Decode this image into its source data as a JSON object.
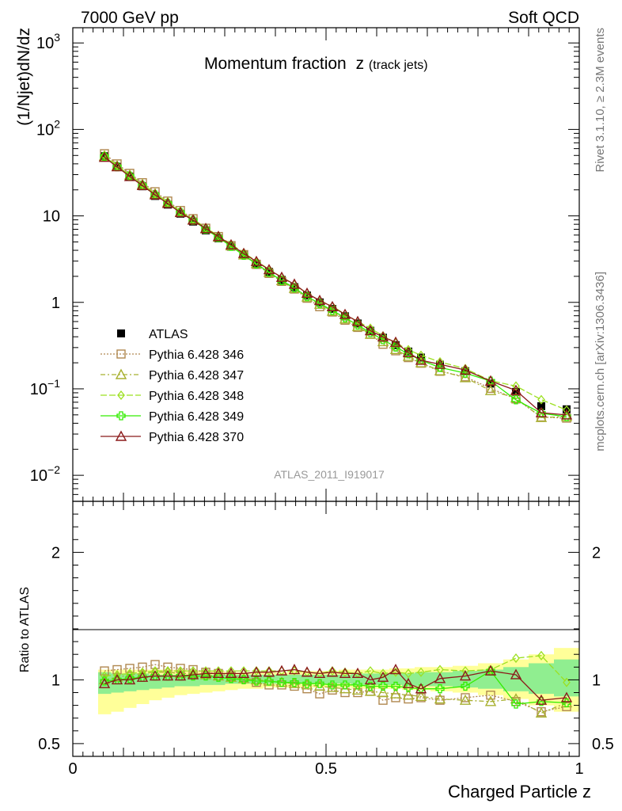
{
  "header": {
    "left": "7000 GeV pp",
    "right": "Soft QCD"
  },
  "side_labels": {
    "rivet": "Rivet 3.1.10, ≥ 2.3M events",
    "mcplots": "mcplots.cern.ch [arXiv:1306.3436]"
  },
  "analysis_id": "ATLAS_2011_I919017",
  "colors": {
    "atlas": "#000000",
    "p346": "#b08850",
    "p347": "#a8b030",
    "p348": "#9ce020",
    "p349": "#33ee00",
    "p370": "#8b1a1a",
    "band_outer": "#ffff99",
    "band_inner": "#90ee90"
  },
  "chart_data": [
    {
      "type": "line",
      "title_main": "Momentum fraction",
      "title_var": "z",
      "title_sub": "(track jets)",
      "ylabel": "(1/Njet)dN/dz",
      "yscale": "log",
      "ylim": [
        0.005,
        1500
      ],
      "xlim": [
        0,
        1
      ],
      "yticks": [
        {
          "value": 0.01,
          "base": "10",
          "exp": "−2"
        },
        {
          "value": 0.1,
          "base": "10",
          "exp": "−1"
        },
        {
          "value": 1,
          "base": "1",
          "exp": ""
        },
        {
          "value": 10,
          "base": "10",
          "exp": ""
        },
        {
          "value": 100,
          "base": "10",
          "exp": "2"
        },
        {
          "value": 1000,
          "base": "10",
          "exp": "3"
        }
      ],
      "x": [
        0.0625,
        0.0875,
        0.1125,
        0.1375,
        0.1625,
        0.1875,
        0.2125,
        0.2375,
        0.2625,
        0.2875,
        0.3125,
        0.3375,
        0.3625,
        0.3875,
        0.4125,
        0.4375,
        0.4625,
        0.4875,
        0.5125,
        0.5375,
        0.5625,
        0.5875,
        0.6125,
        0.6375,
        0.6625,
        0.6875,
        0.725,
        0.775,
        0.825,
        0.875,
        0.925,
        0.975
      ],
      "series": [
        {
          "name": "ATLAS",
          "key": "atlas",
          "marker": "square-filled",
          "dash": "none",
          "values": [
            49,
            37,
            28.5,
            22,
            17,
            13.5,
            10.6,
            8.6,
            6.8,
            5.5,
            4.4,
            3.5,
            2.8,
            2.25,
            1.82,
            1.5,
            1.2,
            1.0,
            0.84,
            0.69,
            0.57,
            0.47,
            0.39,
            0.32,
            0.27,
            0.23,
            0.19,
            0.16,
            0.115,
            0.092,
            0.063,
            0.058
          ]
        },
        {
          "name": "Pythia 6.428 346",
          "key": "p346",
          "marker": "square-open",
          "dash": "2,2",
          "ratio": [
            1.07,
            1.08,
            1.09,
            1.1,
            1.12,
            1.1,
            1.09,
            1.08,
            1.06,
            1.05,
            1.03,
            1.02,
            0.98,
            0.96,
            0.96,
            0.95,
            0.93,
            0.89,
            0.92,
            0.9,
            0.9,
            0.91,
            0.84,
            0.86,
            0.85,
            0.86,
            0.84,
            0.86,
            0.88,
            0.83,
            0.75,
            0.79
          ]
        },
        {
          "name": "Pythia 6.428 347",
          "key": "p347",
          "marker": "triangle-open",
          "dash": "6,3,2,3",
          "ratio": [
            1.0,
            1.02,
            1.04,
            1.05,
            1.06,
            1.06,
            1.05,
            1.05,
            1.04,
            1.03,
            1.02,
            1.01,
            1.0,
            0.99,
            0.98,
            0.97,
            0.96,
            0.95,
            0.94,
            0.93,
            0.92,
            0.91,
            0.9,
            0.89,
            0.88,
            0.87,
            0.85,
            0.84,
            0.83,
            0.85,
            0.74,
            0.82
          ]
        },
        {
          "name": "Pythia 6.428 348",
          "key": "p348",
          "marker": "diamond-open",
          "dash": "8,3",
          "ratio": [
            1.03,
            1.04,
            1.05,
            1.06,
            1.07,
            1.07,
            1.07,
            1.07,
            1.07,
            1.07,
            1.07,
            1.07,
            1.07,
            1.07,
            1.07,
            1.07,
            1.06,
            1.05,
            1.07,
            1.06,
            1.05,
            1.07,
            1.05,
            1.06,
            1.05,
            1.06,
            1.08,
            1.07,
            1.08,
            1.17,
            1.19,
            0.98
          ]
        },
        {
          "name": "Pythia 6.428 349",
          "key": "p349",
          "marker": "cross-open",
          "dash": "none",
          "ratio": [
            0.99,
            1.0,
            1.01,
            1.02,
            1.03,
            1.03,
            1.03,
            1.03,
            1.03,
            1.02,
            1.01,
            1.0,
            0.99,
            0.99,
            0.98,
            0.98,
            0.97,
            0.97,
            0.96,
            0.96,
            0.96,
            0.95,
            0.95,
            0.95,
            0.94,
            0.93,
            0.93,
            0.95,
            1.07,
            0.81,
            0.83,
            0.82
          ]
        },
        {
          "name": "Pythia 6.428 370",
          "key": "p370",
          "marker": "triangle-open",
          "dash": "none",
          "ratio": [
            0.97,
            1.0,
            1.0,
            1.02,
            1.03,
            1.03,
            1.03,
            1.04,
            1.05,
            1.05,
            1.05,
            1.05,
            1.06,
            1.06,
            1.07,
            1.08,
            1.06,
            1.05,
            1.06,
            1.05,
            1.05,
            1.0,
            1.02,
            1.08,
            0.97,
            0.93,
            1.01,
            1.03,
            1.07,
            1.04,
            0.84,
            0.86
          ]
        }
      ],
      "legend_position": "middle-left"
    },
    {
      "type": "line",
      "ylabel": "Ratio to ATLAS",
      "xlabel": "Charged Particle z",
      "ylim": [
        0.4,
        2.4
      ],
      "xlim": [
        0,
        1
      ],
      "yticks": [
        0.5,
        1,
        2
      ],
      "xticks": [
        {
          "value": 0,
          "label": "0"
        },
        {
          "value": 0.5,
          "label": "0.5"
        },
        {
          "value": 1,
          "label": "1"
        }
      ],
      "band_outer_lo": [
        0.73,
        0.75,
        0.78,
        0.81,
        0.84,
        0.86,
        0.88,
        0.89,
        0.9,
        0.91,
        0.92,
        0.93,
        0.93,
        0.94,
        0.94,
        0.94,
        0.94,
        0.94,
        0.94,
        0.94,
        0.93,
        0.93,
        0.93,
        0.93,
        0.92,
        0.92,
        0.91,
        0.9,
        0.88,
        0.85,
        0.8,
        0.75
      ],
      "band_outer_hi": [
        1.08,
        1.08,
        1.08,
        1.08,
        1.08,
        1.08,
        1.08,
        1.07,
        1.07,
        1.07,
        1.06,
        1.06,
        1.06,
        1.06,
        1.06,
        1.07,
        1.07,
        1.07,
        1.07,
        1.08,
        1.08,
        1.08,
        1.08,
        1.09,
        1.09,
        1.1,
        1.1,
        1.11,
        1.13,
        1.16,
        1.2,
        1.25
      ],
      "band_inner_lo": [
        0.89,
        0.9,
        0.91,
        0.92,
        0.93,
        0.94,
        0.95,
        0.95,
        0.96,
        0.96,
        0.97,
        0.97,
        0.97,
        0.97,
        0.97,
        0.97,
        0.97,
        0.97,
        0.97,
        0.97,
        0.96,
        0.96,
        0.96,
        0.96,
        0.95,
        0.95,
        0.95,
        0.94,
        0.93,
        0.91,
        0.89,
        0.87
      ],
      "band_inner_hi": [
        1.06,
        1.05,
        1.05,
        1.05,
        1.04,
        1.04,
        1.04,
        1.04,
        1.04,
        1.04,
        1.04,
        1.04,
        1.04,
        1.04,
        1.04,
        1.04,
        1.04,
        1.04,
        1.04,
        1.04,
        1.05,
        1.05,
        1.05,
        1.05,
        1.05,
        1.06,
        1.06,
        1.07,
        1.08,
        1.1,
        1.13,
        1.16
      ]
    }
  ]
}
